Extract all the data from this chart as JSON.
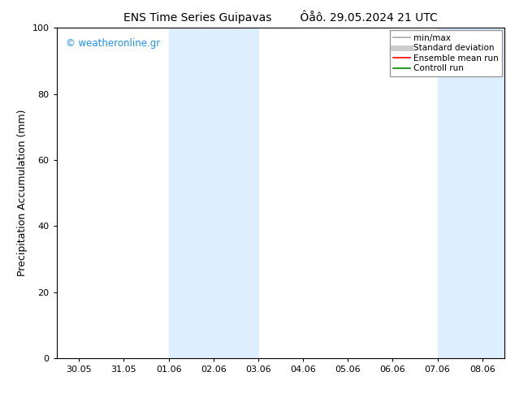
{
  "title_left": "ENS Time Series Guipavas",
  "title_right": "Ôåô. 29.05.2024 21 UTC",
  "ylabel": "Precipitation Accumulation (mm)",
  "ylim": [
    0,
    100
  ],
  "yticks": [
    0,
    20,
    40,
    60,
    80,
    100
  ],
  "xtick_labels": [
    "30.05",
    "31.05",
    "01.06",
    "02.06",
    "03.06",
    "04.06",
    "05.06",
    "06.06",
    "07.06",
    "08.06"
  ],
  "watermark": "© weatheronline.gr",
  "watermark_color": "#1E90FF",
  "bg_color": "#ffffff",
  "plot_bg_color": "#ffffff",
  "shaded_regions": [
    {
      "xstart": 2,
      "xend": 4,
      "color": "#ddeeff"
    },
    {
      "xstart": 8,
      "xend": 10,
      "color": "#ddeeff"
    }
  ],
  "legend_entries": [
    {
      "label": "min/max",
      "color": "#aaaaaa",
      "lw": 1.2
    },
    {
      "label": "Standard deviation",
      "color": "#cccccc",
      "lw": 5
    },
    {
      "label": "Ensemble mean run",
      "color": "#ff0000",
      "lw": 1.2
    },
    {
      "label": "Controll run",
      "color": "#008800",
      "lw": 1.2
    }
  ],
  "figsize": [
    6.34,
    4.9
  ],
  "dpi": 100,
  "xlim_left": -0.5,
  "xlim_right": 9.5,
  "title_fontsize": 10,
  "ylabel_fontsize": 9,
  "tick_fontsize": 8,
  "watermark_fontsize": 8.5,
  "legend_fontsize": 7.5
}
